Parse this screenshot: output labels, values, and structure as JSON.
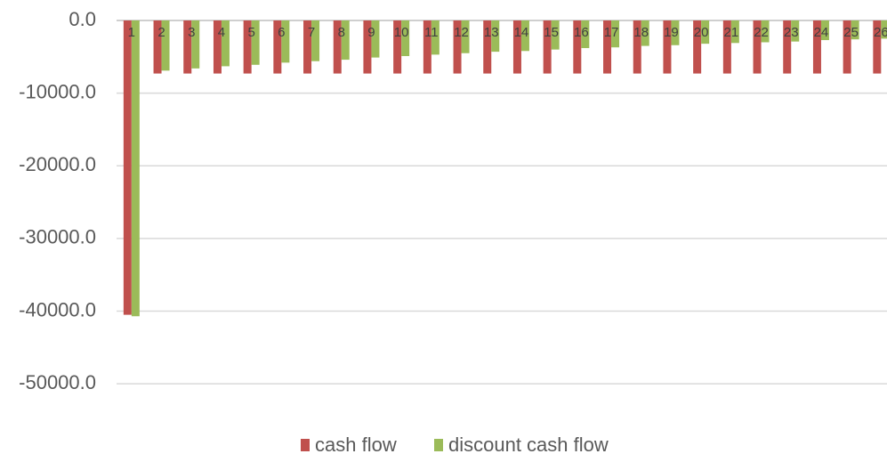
{
  "chart_data": {
    "type": "bar",
    "categories": [
      "1",
      "2",
      "3",
      "4",
      "5",
      "6",
      "7",
      "8",
      "9",
      "10",
      "11",
      "12",
      "13",
      "14",
      "15",
      "16",
      "17",
      "18",
      "19",
      "20",
      "21",
      "22",
      "23",
      "24",
      "25",
      "26"
    ],
    "series": [
      {
        "name": "cash flow",
        "color": "#c0504d",
        "values": [
          -40500,
          -7300,
          -7300,
          -7300,
          -7300,
          -7300,
          -7300,
          -7300,
          -7300,
          -7300,
          -7300,
          -7300,
          -7300,
          -7300,
          -7300,
          -7300,
          -7300,
          -7300,
          -7300,
          -7300,
          -7300,
          -7300,
          -7300,
          -7300,
          -7300,
          -7300
        ]
      },
      {
        "name": "discount cash flow",
        "color": "#9bbb59",
        "values": [
          -40700,
          -6900,
          -6600,
          -6300,
          -6100,
          -5800,
          -5600,
          -5400,
          -5100,
          -4900,
          -4700,
          -4500,
          -4300,
          -4200,
          -4000,
          -3800,
          -3700,
          -3500,
          -3400,
          -3200,
          -3100,
          -3000,
          -2900,
          -2700,
          -2600,
          -2500
        ]
      }
    ],
    "ylim": [
      -55000,
      0
    ],
    "yticks": [
      {
        "value": 0,
        "label": "0.0"
      },
      {
        "value": -10000,
        "label": "-10000.0"
      },
      {
        "value": -20000,
        "label": "-20000.0"
      },
      {
        "value": -30000,
        "label": "-30000.0"
      },
      {
        "value": -40000,
        "label": "-40000.0"
      },
      {
        "value": -50000,
        "label": "-50000.0"
      }
    ],
    "grid": true,
    "legend": "bottom"
  }
}
